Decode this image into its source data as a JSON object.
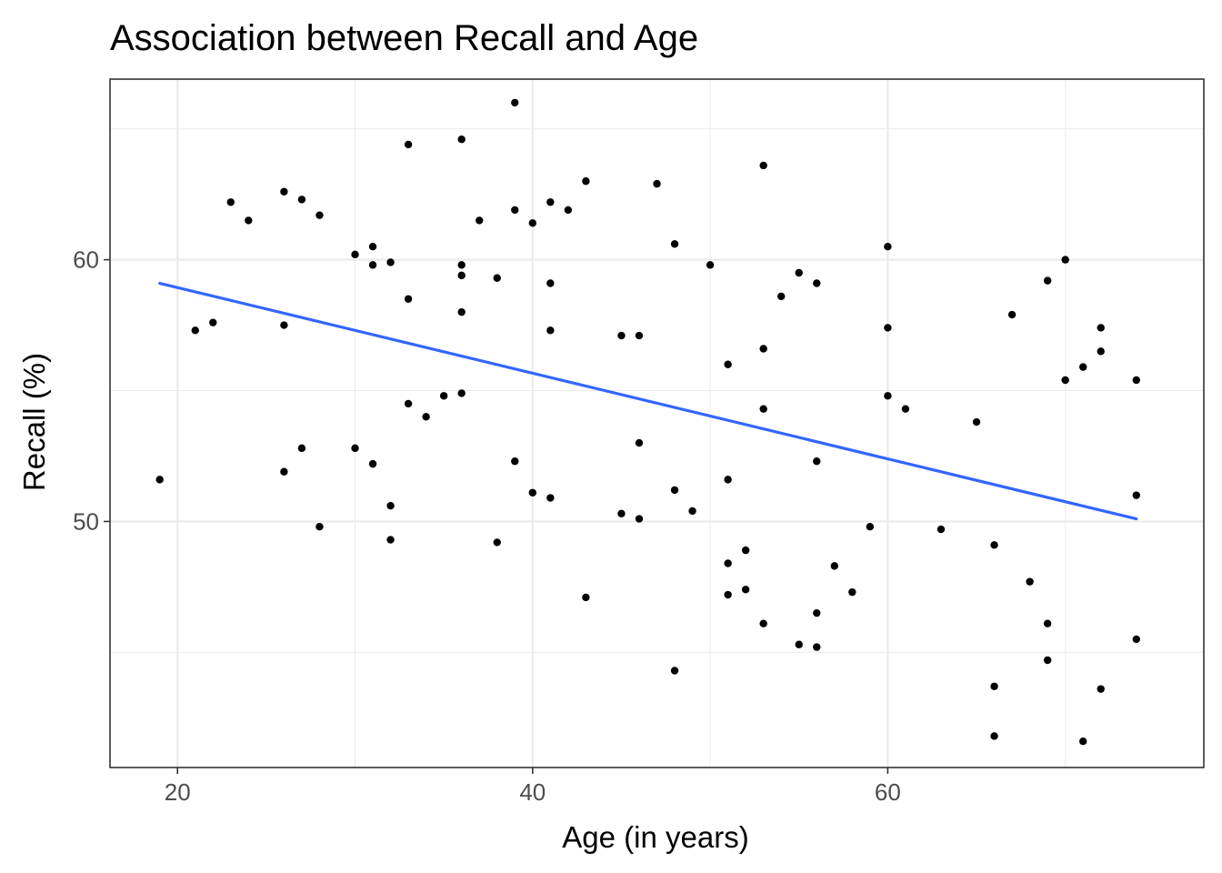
{
  "chart_data": {
    "type": "scatter",
    "title": "Association between Recall and Age",
    "xlabel": "Age (in years)",
    "ylabel": "Recall (%)",
    "xlim": [
      16.2,
      77.8
    ],
    "ylim": [
      40.6,
      66.9
    ],
    "x_ticks": [
      20,
      40,
      60
    ],
    "y_ticks": [
      50,
      60
    ],
    "x_minor": [
      30,
      50,
      70
    ],
    "y_minor": [
      45,
      55,
      65
    ],
    "grid": true,
    "legend": "none",
    "colors": {
      "points": "#000000",
      "trend": "#3366FF",
      "grid": "#EBEBEB",
      "panel_border": "#333333"
    },
    "points": [
      [
        19,
        51.6
      ],
      [
        21,
        57.3
      ],
      [
        22,
        57.6
      ],
      [
        23,
        62.2
      ],
      [
        24,
        61.5
      ],
      [
        26,
        62.6
      ],
      [
        26,
        57.5
      ],
      [
        26,
        51.9
      ],
      [
        27,
        62.3
      ],
      [
        27,
        52.8
      ],
      [
        28,
        61.7
      ],
      [
        28,
        49.8
      ],
      [
        30,
        60.2
      ],
      [
        30,
        52.8
      ],
      [
        31,
        60.5
      ],
      [
        31,
        59.8
      ],
      [
        31,
        52.2
      ],
      [
        32,
        59.9
      ],
      [
        32,
        50.6
      ],
      [
        32,
        49.3
      ],
      [
        33,
        64.4
      ],
      [
        33,
        58.5
      ],
      [
        33,
        54.5
      ],
      [
        34,
        54.0
      ],
      [
        35,
        54.8
      ],
      [
        36,
        64.6
      ],
      [
        36,
        59.8
      ],
      [
        36,
        59.4
      ],
      [
        36,
        58.0
      ],
      [
        36,
        54.9
      ],
      [
        37,
        61.5
      ],
      [
        38,
        59.3
      ],
      [
        38,
        49.2
      ],
      [
        39,
        66.0
      ],
      [
        39,
        61.9
      ],
      [
        39,
        52.3
      ],
      [
        40,
        61.4
      ],
      [
        40,
        51.1
      ],
      [
        41,
        62.2
      ],
      [
        41,
        59.1
      ],
      [
        41,
        57.3
      ],
      [
        41,
        50.9
      ],
      [
        42,
        61.9
      ],
      [
        43,
        63.0
      ],
      [
        43,
        47.1
      ],
      [
        45,
        57.1
      ],
      [
        45,
        50.3
      ],
      [
        46,
        57.1
      ],
      [
        46,
        53.0
      ],
      [
        46,
        50.1
      ],
      [
        47,
        62.9
      ],
      [
        48,
        60.6
      ],
      [
        48,
        51.2
      ],
      [
        48,
        44.3
      ],
      [
        49,
        50.4
      ],
      [
        50,
        59.8
      ],
      [
        51,
        56.0
      ],
      [
        51,
        51.6
      ],
      [
        51,
        48.4
      ],
      [
        51,
        47.2
      ],
      [
        52,
        48.9
      ],
      [
        52,
        47.4
      ],
      [
        53,
        63.6
      ],
      [
        53,
        56.6
      ],
      [
        53,
        54.3
      ],
      [
        53,
        46.1
      ],
      [
        54,
        58.6
      ],
      [
        55,
        59.5
      ],
      [
        55,
        45.3
      ],
      [
        56,
        59.1
      ],
      [
        56,
        52.3
      ],
      [
        56,
        46.5
      ],
      [
        56,
        45.2
      ],
      [
        57,
        48.3
      ],
      [
        58,
        47.3
      ],
      [
        59,
        49.8
      ],
      [
        60,
        60.5
      ],
      [
        60,
        57.4
      ],
      [
        60,
        54.8
      ],
      [
        61,
        54.3
      ],
      [
        63,
        49.7
      ],
      [
        65,
        53.8
      ],
      [
        66,
        49.1
      ],
      [
        66,
        43.7
      ],
      [
        66,
        41.8
      ],
      [
        67,
        57.9
      ],
      [
        68,
        47.7
      ],
      [
        69,
        59.2
      ],
      [
        69,
        46.1
      ],
      [
        69,
        44.7
      ],
      [
        70,
        60.0
      ],
      [
        70,
        55.4
      ],
      [
        71,
        55.9
      ],
      [
        71,
        41.6
      ],
      [
        72,
        57.4
      ],
      [
        72,
        56.5
      ],
      [
        72,
        43.6
      ],
      [
        74,
        55.4
      ],
      [
        74,
        51.0
      ],
      [
        74,
        45.5
      ]
    ],
    "trend_line": {
      "x": [
        19,
        74
      ],
      "y": [
        59.1,
        50.1
      ]
    }
  }
}
